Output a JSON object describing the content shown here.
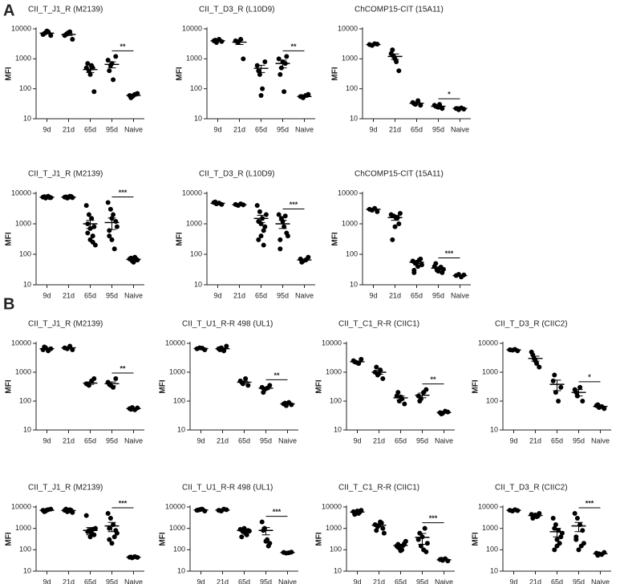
{
  "figure_labels": [
    "A",
    "B"
  ],
  "chart_data": [
    {
      "type": "dot",
      "title": "CII_T_J1_R (M2139)",
      "categories": [
        "9d",
        "21d",
        "65d",
        "95d",
        "Naive"
      ],
      "y_label": "MFI",
      "ylim": [
        10,
        10000
      ],
      "yticks": [
        10,
        100,
        1000,
        10000
      ],
      "log_y": true,
      "color": "#000000",
      "points": [
        [
          6500,
          7500,
          8000,
          6000,
          7000,
          8500
        ],
        [
          6000,
          7000,
          8000,
          4500,
          6500,
          7500
        ],
        [
          500,
          400,
          600,
          80,
          700,
          300,
          500
        ],
        [
          900,
          600,
          200,
          1200,
          400,
          700
        ],
        [
          60,
          55,
          65,
          70,
          50,
          60
        ]
      ],
      "means": [
        7200,
        6500,
        440,
        650,
        60
      ],
      "sem": [
        400,
        500,
        90,
        150,
        3
      ],
      "annotation": {
        "text": "**",
        "between": [
          "95d",
          "Naive"
        ]
      }
    },
    {
      "type": "dot",
      "title": "CII_T_D3_R (L10D9)",
      "categories": [
        "9d",
        "21d",
        "65d",
        "95d",
        "Naive"
      ],
      "y_label": "MFI",
      "ylim": [
        10,
        10000
      ],
      "yticks": [
        10,
        100,
        1000,
        10000
      ],
      "log_y": true,
      "color": "#000000",
      "points": [
        [
          4000,
          3500,
          4500,
          3800,
          4200
        ],
        [
          4000,
          3500,
          4500,
          1000,
          3800
        ],
        [
          600,
          300,
          100,
          800,
          400,
          60
        ],
        [
          1000,
          500,
          80,
          1200,
          300,
          800,
          700
        ],
        [
          55,
          50,
          60,
          65,
          55
        ]
      ],
      "means": [
        4000,
        3600,
        480,
        700,
        55
      ],
      "sem": [
        200,
        600,
        130,
        200,
        3
      ],
      "annotation": {
        "text": "**",
        "between": [
          "95d",
          "Naive"
        ]
      }
    },
    {
      "type": "dot",
      "title": "ChCOMP15-CIT (15A11)",
      "categories": [
        "9d",
        "21d",
        "65d",
        "95d",
        "Naive"
      ],
      "y_label": "MFI",
      "ylim": [
        10,
        10000
      ],
      "yticks": [
        10,
        100,
        1000,
        10000
      ],
      "log_y": true,
      "color": "#000000",
      "points": [
        [
          3000,
          2800,
          3200,
          3100
        ],
        [
          1500,
          1200,
          800,
          400,
          2000,
          1000
        ],
        [
          35,
          30,
          40,
          28,
          32
        ],
        [
          28,
          25,
          30,
          22,
          26,
          24
        ],
        [
          22,
          20,
          23,
          21,
          22
        ]
      ],
      "means": [
        3000,
        1200,
        33,
        26,
        22
      ],
      "sem": [
        100,
        250,
        3,
        1,
        1
      ],
      "annotation": {
        "text": "*",
        "between": [
          "95d",
          "Naive"
        ]
      }
    },
    {
      "type": "dot",
      "title": "CII_T_J1_R (M2139)",
      "categories": [
        "9d",
        "21d",
        "65d",
        "95d",
        "Naive"
      ],
      "y_label": "MFI",
      "ylim": [
        10,
        10000
      ],
      "yticks": [
        10,
        100,
        1000,
        10000
      ],
      "log_y": true,
      "color": "#000000",
      "points": [
        [
          7500,
          7000,
          8000,
          7200,
          7800,
          7600,
          7300
        ],
        [
          7500,
          7000,
          8000,
          7200,
          7700,
          7400,
          7900
        ],
        [
          4000,
          2000,
          1500,
          800,
          500,
          300,
          250,
          200,
          1000,
          700,
          400
        ],
        [
          5000,
          3000,
          2000,
          1200,
          600,
          300,
          150,
          800,
          400,
          1500
        ],
        [
          70,
          60,
          80,
          65,
          75,
          55,
          70
        ]
      ],
      "means": [
        7500,
        7500,
        1000,
        1100,
        68
      ],
      "sem": [
        150,
        150,
        300,
        450,
        3
      ],
      "annotation": {
        "text": "***",
        "between": [
          "95d",
          "Naive"
        ]
      }
    },
    {
      "type": "dot",
      "title": "CII_T_D3_R (L10D9)",
      "categories": [
        "9d",
        "21d",
        "65d",
        "95d",
        "Naive"
      ],
      "y_label": "MFI",
      "ylim": [
        10,
        10000
      ],
      "yticks": [
        10,
        100,
        1000,
        10000
      ],
      "log_y": true,
      "color": "#000000",
      "points": [
        [
          5000,
          4500,
          4800,
          4300,
          5200
        ],
        [
          4300,
          4000,
          4500,
          4200
        ],
        [
          4000,
          2500,
          1500,
          800,
          300,
          1000,
          600,
          2000,
          1200,
          400,
          200
        ],
        [
          2000,
          1500,
          800,
          500,
          300,
          1200,
          1800,
          400,
          150
        ],
        [
          70,
          60,
          65,
          80,
          55
        ]
      ],
      "means": [
        4700,
        4200,
        1500,
        1000,
        65
      ],
      "sem": [
        150,
        100,
        400,
        300,
        4
      ],
      "annotation": {
        "text": "***",
        "between": [
          "95d",
          "Naive"
        ]
      }
    },
    {
      "type": "dot",
      "title": "ChCOMP15-CIT (15A11)",
      "categories": [
        "9d",
        "21d",
        "65d",
        "95d",
        "Naive"
      ],
      "y_label": "MFI",
      "ylim": [
        10,
        10000
      ],
      "yticks": [
        10,
        100,
        1000,
        10000
      ],
      "log_y": true,
      "color": "#000000",
      "points": [
        [
          3000,
          2800,
          3200,
          2500
        ],
        [
          2000,
          1800,
          1500,
          1000,
          300,
          800,
          1600,
          2200
        ],
        [
          60,
          50,
          40,
          70,
          30,
          55,
          65,
          45,
          25
        ],
        [
          40,
          30,
          35,
          25,
          50,
          28,
          38,
          32
        ],
        [
          20,
          22,
          18,
          21
        ]
      ],
      "means": [
        3000,
        1600,
        55,
        35,
        20
      ],
      "sem": [
        150,
        300,
        5,
        3,
        1
      ],
      "annotation": {
        "text": "***",
        "between": [
          "95d",
          "Naive"
        ]
      }
    },
    {
      "type": "dot",
      "title": "CII_T_J1_R (M2139)",
      "categories": [
        "9d",
        "21d",
        "65d",
        "95d",
        "Naive"
      ],
      "y_label": "MFI",
      "ylim": [
        10,
        10000
      ],
      "yticks": [
        10,
        100,
        1000,
        10000
      ],
      "log_y": true,
      "color": "#000000",
      "points": [
        [
          6000,
          7000,
          5500,
          6500,
          7500
        ],
        [
          7000,
          6500,
          8000,
          6000
        ],
        [
          400,
          350,
          500,
          600,
          380
        ],
        [
          450,
          350,
          300,
          600,
          380
        ],
        [
          55,
          60,
          50,
          58,
          52
        ]
      ],
      "means": [
        6500,
        7000,
        420,
        400,
        55
      ],
      "sem": [
        350,
        400,
        40,
        60,
        2
      ],
      "annotation": {
        "text": "**",
        "between": [
          "95d",
          "Naive"
        ]
      }
    },
    {
      "type": "dot",
      "title": "CII_T_U1_R-R 498 (UL1)",
      "categories": [
        "9d",
        "21d",
        "65d",
        "95d",
        "Naive"
      ],
      "y_label": "MFI",
      "ylim": [
        10,
        10000
      ],
      "yticks": [
        10,
        100,
        1000,
        10000
      ],
      "log_y": true,
      "color": "#000000",
      "points": [
        [
          6500,
          7000,
          6800,
          6000
        ],
        [
          6500,
          7000,
          5500,
          8000,
          6000
        ],
        [
          500,
          400,
          600,
          350,
          450
        ],
        [
          300,
          250,
          280,
          350,
          200
        ],
        [
          80,
          70,
          90,
          75,
          85
        ]
      ],
      "means": [
        6600,
        6500,
        450,
        280,
        80
      ],
      "sem": [
        200,
        400,
        40,
        25,
        4
      ],
      "annotation": {
        "text": "**",
        "between": [
          "95d",
          "Naive"
        ]
      }
    },
    {
      "type": "dot",
      "title": "CII_T_C1_R-R (CIIC1)",
      "categories": [
        "9d",
        "21d",
        "65d",
        "95d",
        "Naive"
      ],
      "y_label": "MFI",
      "ylim": [
        10,
        10000
      ],
      "yticks": [
        10,
        100,
        1000,
        10000
      ],
      "log_y": true,
      "color": "#000000",
      "points": [
        [
          2500,
          2200,
          2000,
          2800,
          2300
        ],
        [
          1000,
          800,
          1200,
          600,
          1500,
          900
        ],
        [
          150,
          100,
          120,
          80,
          200,
          140
        ],
        [
          150,
          120,
          200,
          250,
          100
        ],
        [
          40,
          38,
          45,
          42,
          36
        ]
      ],
      "means": [
        2300,
        1000,
        130,
        160,
        40
      ],
      "sem": [
        150,
        150,
        20,
        30,
        2
      ],
      "annotation": {
        "text": "**",
        "between": [
          "95d",
          "Naive"
        ]
      }
    },
    {
      "type": "dot",
      "title": "CII_T_D3_R (CIIC2)",
      "categories": [
        "9d",
        "21d",
        "65d",
        "95d",
        "Naive"
      ],
      "y_label": "MFI",
      "ylim": [
        10,
        10000
      ],
      "yticks": [
        10,
        100,
        1000,
        10000
      ],
      "log_y": true,
      "color": "#000000",
      "points": [
        [
          6000,
          5800,
          6200,
          5500
        ],
        [
          5000,
          3000,
          2000,
          1500,
          4000,
          2500
        ],
        [
          500,
          200,
          100,
          300,
          800
        ],
        [
          250,
          150,
          300,
          100,
          200
        ],
        [
          70,
          60,
          65,
          55,
          75
        ]
      ],
      "means": [
        5900,
        3000,
        380,
        200,
        65
      ],
      "sem": [
        150,
        600,
        150,
        50,
        4
      ],
      "annotation": {
        "text": "*",
        "between": [
          "95d",
          "Naive"
        ]
      }
    },
    {
      "type": "dot",
      "title": "CII_T_J1_R (M2139)",
      "categories": [
        "9d",
        "21d",
        "65d",
        "95d",
        "Naive"
      ],
      "y_label": "MFI",
      "ylim": [
        10,
        10000
      ],
      "yticks": [
        10,
        100,
        1000,
        10000
      ],
      "log_y": true,
      "color": "#000000",
      "points": [
        [
          7000,
          6500,
          7500,
          8000,
          6000,
          7200
        ],
        [
          7000,
          6000,
          7500,
          5500,
          8000,
          6500,
          7000
        ],
        [
          4000,
          800,
          600,
          500,
          700,
          400,
          900,
          1000
        ],
        [
          5000,
          3000,
          1500,
          800,
          300,
          200,
          400,
          600,
          1000
        ],
        [
          45,
          42,
          48,
          44,
          46
        ]
      ],
      "means": [
        7000,
        6800,
        800,
        1300,
        45
      ],
      "sem": [
        300,
        350,
        300,
        600,
        1
      ],
      "annotation": {
        "text": "***",
        "between": [
          "95d",
          "Naive"
        ]
      }
    },
    {
      "type": "dot",
      "title": "CII_T_U1_R-R 498 (UL1)",
      "categories": [
        "9d",
        "21d",
        "65d",
        "95d",
        "Naive"
      ],
      "y_label": "MFI",
      "ylim": [
        10,
        10000
      ],
      "yticks": [
        10,
        100,
        1000,
        10000
      ],
      "log_y": true,
      "color": "#000000",
      "points": [
        [
          7000,
          7500,
          8000,
          6500,
          7200,
          7800
        ],
        [
          7000,
          6500,
          8000,
          7500,
          6800
        ],
        [
          900,
          700,
          600,
          800,
          400,
          1000,
          500,
          750
        ],
        [
          2000,
          1000,
          300,
          200,
          800,
          250,
          150
        ],
        [
          75,
          70,
          72,
          78
        ]
      ],
      "means": [
        7300,
        7100,
        800,
        800,
        74
      ],
      "sem": [
        250,
        250,
        100,
        300,
        2
      ],
      "annotation": {
        "text": "***",
        "between": [
          "95d",
          "Naive"
        ]
      }
    },
    {
      "type": "dot",
      "title": "CII_T_C1_R-R (CIIC1)",
      "categories": [
        "9d",
        "21d",
        "65d",
        "95d",
        "Naive"
      ],
      "y_label": "MFI",
      "ylim": [
        10,
        10000
      ],
      "yticks": [
        10,
        100,
        1000,
        10000
      ],
      "log_y": true,
      "color": "#000000",
      "points": [
        [
          6000,
          5500,
          5000,
          7000,
          4500,
          6500,
          5800
        ],
        [
          1500,
          1200,
          2000,
          1000,
          800,
          1400,
          1800,
          600
        ],
        [
          150,
          120,
          100,
          200,
          180,
          90,
          160,
          250,
          130
        ],
        [
          300,
          150,
          100,
          80,
          600,
          400,
          1000,
          200
        ],
        [
          35,
          32,
          38,
          30,
          36
        ]
      ],
      "means": [
        5800,
        1400,
        160,
        380,
        34
      ],
      "sem": [
        300,
        200,
        20,
        200,
        2
      ],
      "annotation": {
        "text": "***",
        "between": [
          "95d",
          "Naive"
        ]
      }
    },
    {
      "type": "dot",
      "title": "CII_T_D3_R (CIIC2)",
      "categories": [
        "9d",
        "21d",
        "65d",
        "95d",
        "Naive"
      ],
      "y_label": "MFI",
      "ylim": [
        10,
        10000
      ],
      "yticks": [
        10,
        100,
        1000,
        10000
      ],
      "log_y": true,
      "color": "#000000",
      "points": [
        [
          7000,
          6500,
          7500,
          6800
        ],
        [
          4500,
          4000,
          3500,
          5000,
          3000,
          4200,
          3800
        ],
        [
          3000,
          1500,
          800,
          400,
          100,
          150,
          200,
          600,
          1000,
          300
        ],
        [
          5000,
          3000,
          1500,
          800,
          300,
          100,
          150,
          200,
          400
        ],
        [
          70,
          65,
          60,
          75,
          55
        ]
      ],
      "means": [
        7000,
        4000,
        700,
        1300,
        65
      ],
      "sem": [
        200,
        250,
        300,
        600,
        4
      ],
      "annotation": {
        "text": "***",
        "between": [
          "95d",
          "Naive"
        ]
      }
    }
  ]
}
